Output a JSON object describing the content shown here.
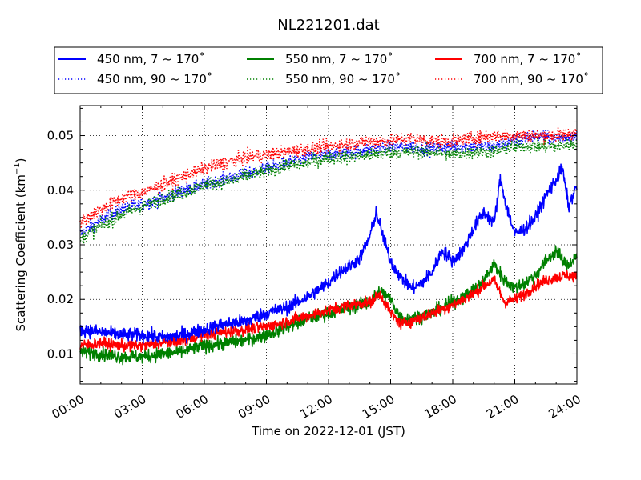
{
  "chart_data": {
    "type": "line",
    "title": "NL221201.dat",
    "xlabel": "Time on 2022-12-01 (JST)",
    "ylabel": "Scattering Coefficient (km",
    "ylabel_sup": "−1",
    "ylabel_end": ")",
    "xlim": [
      0,
      24
    ],
    "ylim": [
      0.0045,
      0.0555
    ],
    "x_ticks": [
      {
        "value": 0,
        "label": "00:00"
      },
      {
        "value": 3,
        "label": "03:00"
      },
      {
        "value": 6,
        "label": "06:00"
      },
      {
        "value": 9,
        "label": "09:00"
      },
      {
        "value": 12,
        "label": "12:00"
      },
      {
        "value": 15,
        "label": "15:00"
      },
      {
        "value": 18,
        "label": "18:00"
      },
      {
        "value": 21,
        "label": "21:00"
      },
      {
        "value": 24,
        "label": "24:00"
      }
    ],
    "y_ticks": [
      {
        "value": 0.01,
        "label": "0.01"
      },
      {
        "value": 0.02,
        "label": "0.02"
      },
      {
        "value": 0.03,
        "label": "0.03"
      },
      {
        "value": 0.04,
        "label": "0.04"
      },
      {
        "value": 0.05,
        "label": "0.05"
      }
    ],
    "grid": true,
    "legend_position": "top",
    "x_unit": "hours",
    "series": [
      {
        "name": "450 nm, 7 ~ 170˚",
        "color": "#0000ff",
        "style": "solid",
        "noise": 0.0012,
        "x": [
          0,
          1,
          2,
          3,
          4,
          5,
          6,
          7,
          8,
          9,
          10,
          11,
          12,
          12.5,
          13,
          13.5,
          14,
          14.3,
          14.6,
          15,
          15.5,
          16,
          16.5,
          17,
          17.5,
          18,
          18.5,
          19,
          19.5,
          20,
          20.3,
          20.6,
          21,
          21.5,
          22,
          22.5,
          23,
          23.3,
          23.6,
          24
        ],
        "y": [
          0.0145,
          0.014,
          0.0135,
          0.0135,
          0.013,
          0.0135,
          0.0145,
          0.0155,
          0.016,
          0.0175,
          0.0185,
          0.0205,
          0.023,
          0.025,
          0.026,
          0.0275,
          0.0315,
          0.036,
          0.032,
          0.027,
          0.024,
          0.022,
          0.023,
          0.025,
          0.029,
          0.027,
          0.029,
          0.033,
          0.036,
          0.034,
          0.042,
          0.037,
          0.032,
          0.033,
          0.035,
          0.039,
          0.042,
          0.044,
          0.037,
          0.041
        ]
      },
      {
        "name": "450 nm, 90 ~ 170˚",
        "color": "#0000ff",
        "style": "dotted",
        "noise": 0.0012,
        "x": [
          0,
          1,
          2,
          3,
          4,
          5,
          6,
          7,
          8,
          9,
          10,
          11,
          12,
          13,
          14,
          15,
          16,
          17,
          18,
          19,
          20,
          21,
          22,
          23,
          24
        ],
        "y": [
          0.032,
          0.0345,
          0.0365,
          0.0375,
          0.0385,
          0.04,
          0.041,
          0.042,
          0.043,
          0.044,
          0.045,
          0.046,
          0.0465,
          0.047,
          0.0475,
          0.048,
          0.048,
          0.0475,
          0.048,
          0.048,
          0.048,
          0.049,
          0.05,
          0.0495,
          0.05
        ]
      },
      {
        "name": "550 nm, 7 ~ 170˚",
        "color": "#008000",
        "style": "solid",
        "noise": 0.0012,
        "x": [
          0,
          1,
          2,
          3,
          4,
          5,
          6,
          7,
          8,
          9,
          10,
          11,
          12,
          13,
          14,
          14.5,
          15,
          15.5,
          16,
          17,
          18,
          19,
          19.5,
          20,
          20.5,
          21,
          21.5,
          22,
          22.5,
          23,
          23.5,
          24
        ],
        "y": [
          0.0105,
          0.01,
          0.0095,
          0.0095,
          0.01,
          0.0105,
          0.0115,
          0.012,
          0.0125,
          0.0135,
          0.015,
          0.0165,
          0.0175,
          0.0185,
          0.0195,
          0.0215,
          0.02,
          0.0165,
          0.0165,
          0.0175,
          0.0195,
          0.0215,
          0.0235,
          0.0265,
          0.0235,
          0.022,
          0.023,
          0.0245,
          0.027,
          0.029,
          0.026,
          0.028
        ]
      },
      {
        "name": "550 nm, 90 ~ 170˚",
        "color": "#008000",
        "style": "dotted",
        "noise": 0.0012,
        "x": [
          0,
          1,
          2,
          3,
          4,
          5,
          6,
          7,
          8,
          9,
          10,
          11,
          12,
          13,
          14,
          15,
          16,
          17,
          18,
          19,
          20,
          21,
          22,
          23,
          24
        ],
        "y": [
          0.031,
          0.0335,
          0.0355,
          0.037,
          0.0385,
          0.0395,
          0.041,
          0.0415,
          0.0425,
          0.0435,
          0.0445,
          0.045,
          0.046,
          0.046,
          0.0465,
          0.047,
          0.047,
          0.047,
          0.0465,
          0.047,
          0.047,
          0.048,
          0.048,
          0.048,
          0.0485
        ]
      },
      {
        "name": "700 nm, 7 ~ 170˚",
        "color": "#ff0000",
        "style": "solid",
        "noise": 0.001,
        "x": [
          0,
          1,
          2,
          3,
          4,
          5,
          6,
          7,
          8,
          9,
          10,
          11,
          12,
          13,
          14,
          14.5,
          15,
          15.5,
          16,
          17,
          18,
          19,
          19.5,
          20,
          20.5,
          21,
          21.5,
          22,
          22.5,
          23,
          23.5,
          24
        ],
        "y": [
          0.0115,
          0.012,
          0.0115,
          0.0115,
          0.012,
          0.0125,
          0.0135,
          0.014,
          0.0145,
          0.015,
          0.016,
          0.017,
          0.018,
          0.019,
          0.0195,
          0.021,
          0.0175,
          0.0155,
          0.016,
          0.0175,
          0.019,
          0.021,
          0.0225,
          0.0235,
          0.0195,
          0.02,
          0.021,
          0.0225,
          0.0235,
          0.024,
          0.0245,
          0.024
        ]
      },
      {
        "name": "700 nm, 90 ~ 170˚",
        "color": "#ff0000",
        "style": "dotted",
        "noise": 0.0012,
        "x": [
          0,
          1,
          2,
          3,
          4,
          5,
          6,
          7,
          8,
          9,
          10,
          11,
          12,
          13,
          14,
          15,
          16,
          17,
          18,
          19,
          20,
          21,
          22,
          23,
          24
        ],
        "y": [
          0.034,
          0.0365,
          0.0385,
          0.0395,
          0.041,
          0.0425,
          0.044,
          0.045,
          0.046,
          0.0465,
          0.047,
          0.0475,
          0.048,
          0.0485,
          0.049,
          0.049,
          0.0495,
          0.049,
          0.049,
          0.0495,
          0.05,
          0.05,
          0.05,
          0.05,
          0.0505
        ]
      }
    ]
  }
}
